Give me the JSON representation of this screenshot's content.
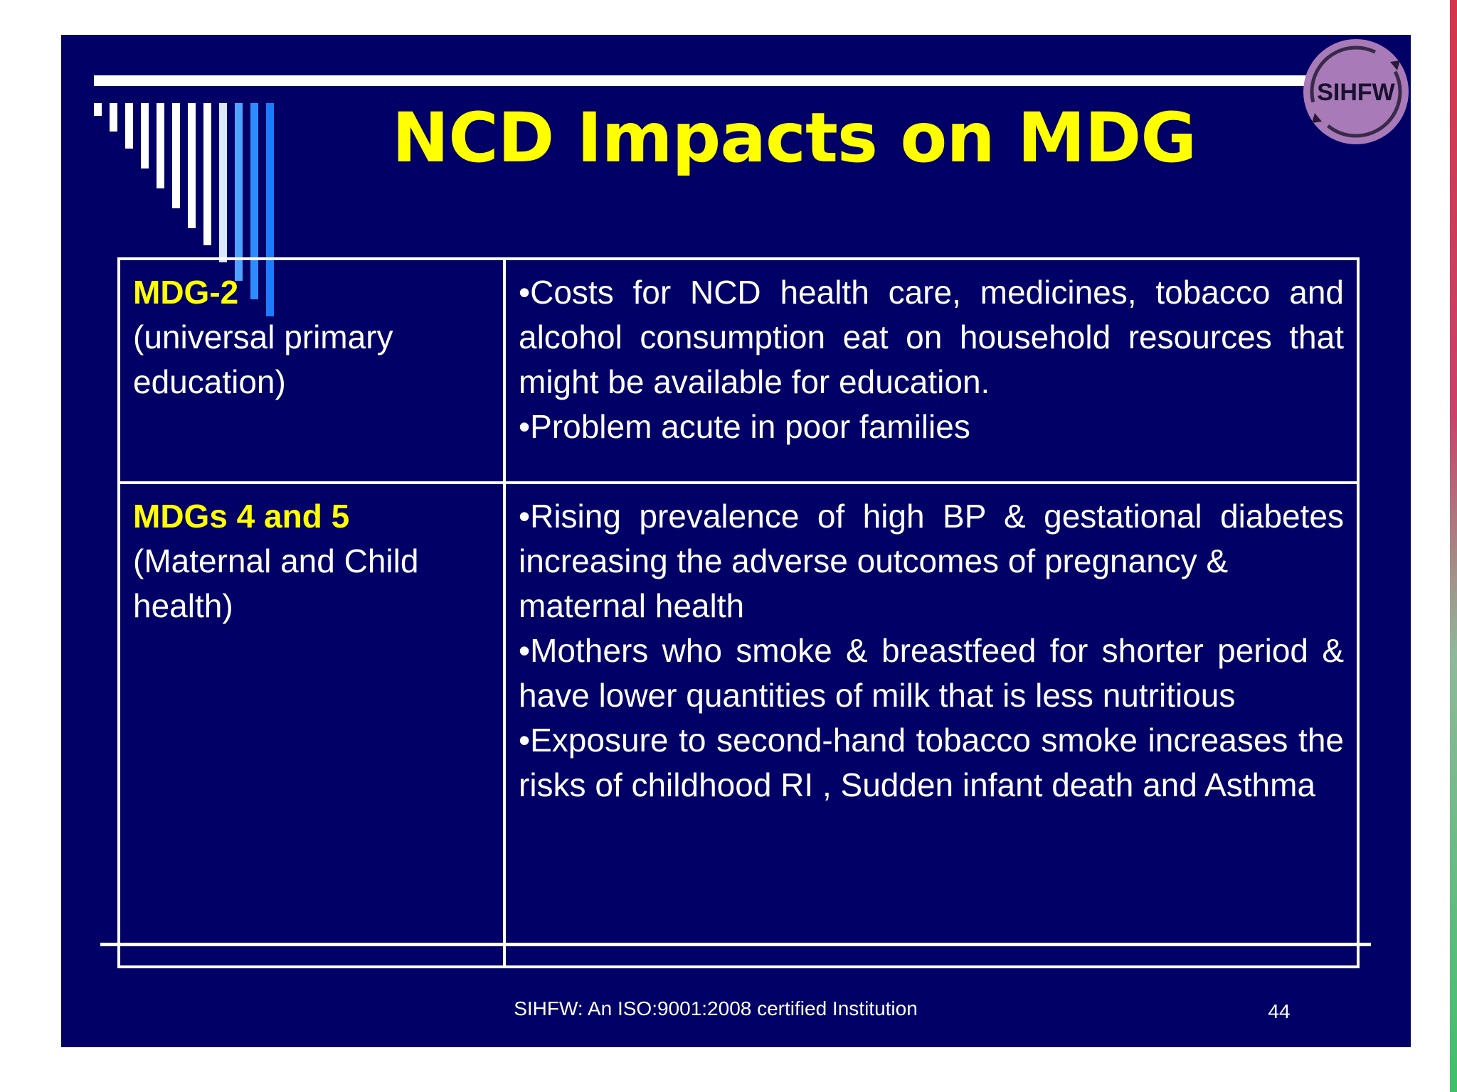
{
  "slide": {
    "title": "NCD Impacts on MDG",
    "logo_text": "SIHFW"
  },
  "rows": [
    {
      "label": "MDG-2",
      "description": "(universal primary education)",
      "points": [
        "•Costs for NCD health care, medicines, tobacco and alcohol consumption eat on household resources that might be available for education.",
        "•Problem acute in poor families"
      ]
    },
    {
      "label": "MDGs 4 and 5",
      "description": "(Maternal and Child health)",
      "points": [
        "•Rising prevalence of high BP & gestational diabetes increasing the adverse outcomes of pregnancy &",
        "maternal health",
        "•Mothers who smoke & breastfeed for shorter period & have lower quantities of milk that is less nutritious",
        "•Exposure to second-hand tobacco smoke increases the risks of childhood RI , Sudden infant death and Asthma"
      ]
    }
  ],
  "footer": {
    "text": "SIHFW: An ISO:9001:2008 certified Institution",
    "page_number": "44"
  },
  "colors": {
    "background": "#000066",
    "title": "#ffff00",
    "text": "#ffffff"
  }
}
